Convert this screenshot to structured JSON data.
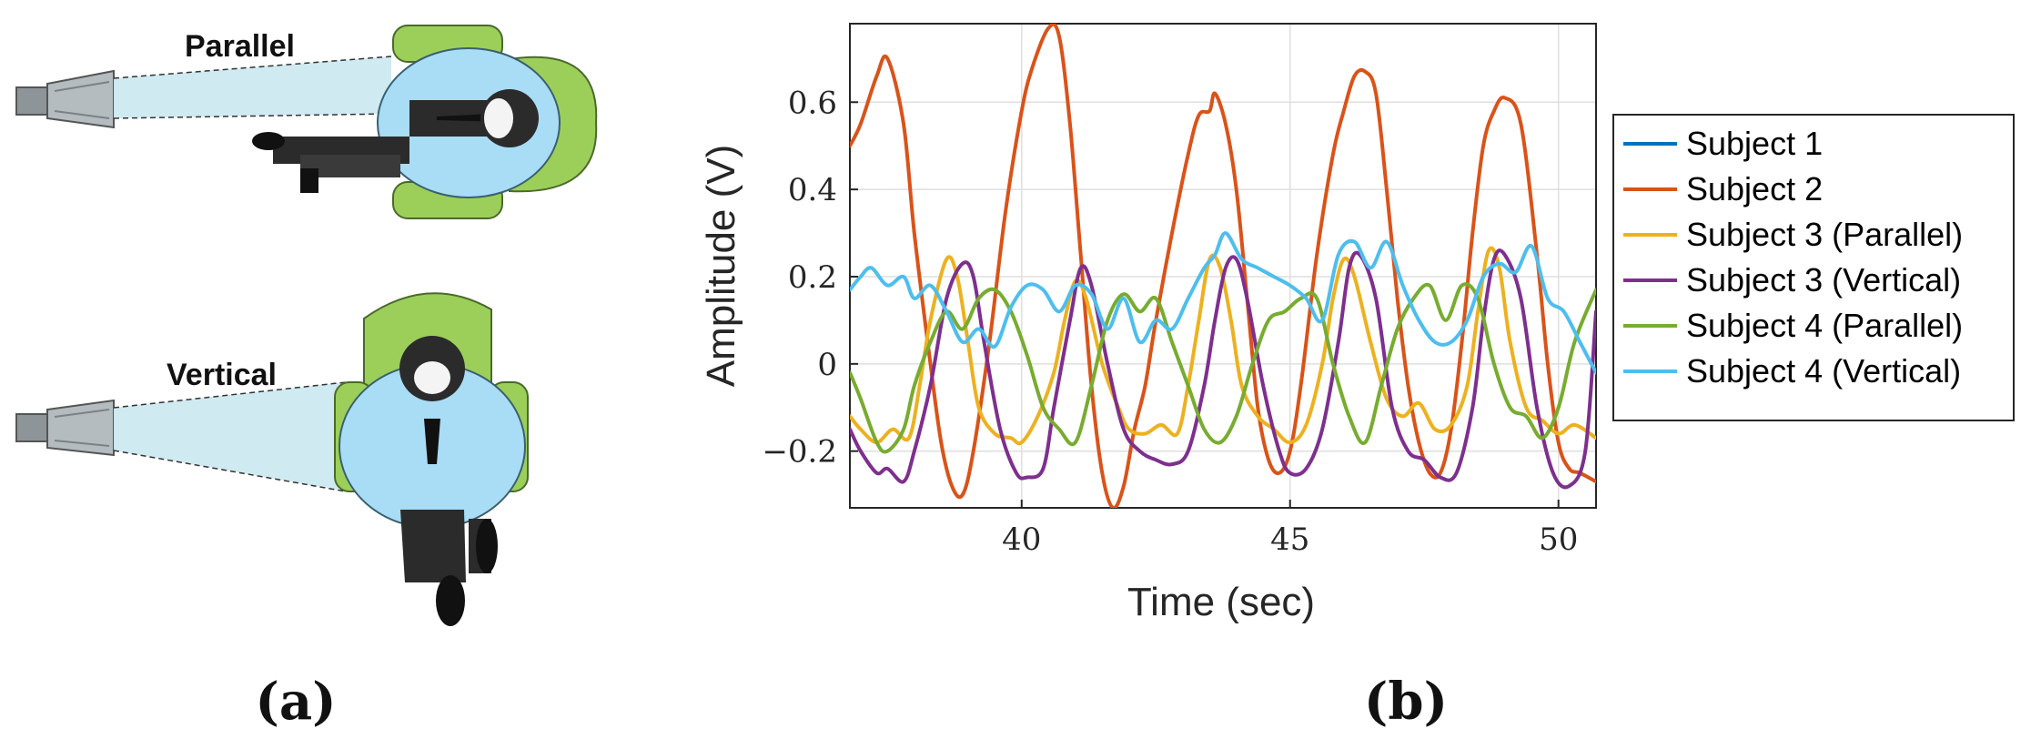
{
  "figure": {
    "panel_a_label": "(a)",
    "panel_b_label": "(b)"
  },
  "illustration": {
    "parallel_label": "Parallel",
    "vertical_label": "Vertical",
    "colors": {
      "chair": "#9ccf5a",
      "shirt": "#a9dcf5",
      "suit": "#2b2b2b",
      "beam": "#cce9f0",
      "antenna": "#9aa3a6"
    }
  },
  "chart_data": {
    "type": "line",
    "xlabel": "Time (sec)",
    "ylabel": "Amplitude (V)",
    "xlim": [
      36.8,
      50.7
    ],
    "ylim": [
      -0.33,
      0.78
    ],
    "xticks": [
      40,
      45,
      50
    ],
    "yticks": [
      -0.2,
      0,
      0.2,
      0.4,
      0.6
    ],
    "ytick_labels": [
      "−0.2",
      "0",
      "0.2",
      "0.4",
      "0.6"
    ],
    "grid": true,
    "legend_position": "right",
    "series": [
      {
        "name": "Subject 1",
        "color": "#0072bd",
        "x": [],
        "y": []
      },
      {
        "name": "Subject 2",
        "color": "#d95319",
        "x": [
          36.8,
          37.0,
          37.3,
          37.5,
          37.8,
          38.0,
          38.3,
          38.5,
          38.7,
          38.9,
          39.1,
          39.4,
          39.7,
          40.0,
          40.2,
          40.5,
          40.7,
          40.9,
          41.1,
          41.3,
          41.5,
          41.7,
          41.9,
          42.1,
          42.3,
          42.5,
          42.8,
          43.1,
          43.3,
          43.5,
          43.6,
          43.8,
          44.0,
          44.2,
          44.4,
          44.6,
          44.8,
          45.0,
          45.2,
          45.5,
          45.8,
          46.0,
          46.2,
          46.4,
          46.6,
          46.8,
          47.0,
          47.2,
          47.4,
          47.6,
          47.8,
          48.0,
          48.2,
          48.4,
          48.6,
          48.8,
          49.0,
          49.3,
          49.6,
          49.8,
          50.0,
          50.2,
          50.4,
          50.7
        ],
        "y": [
          0.5,
          0.55,
          0.66,
          0.7,
          0.55,
          0.3,
          0.0,
          -0.18,
          -0.28,
          -0.3,
          -0.2,
          0.05,
          0.35,
          0.58,
          0.68,
          0.77,
          0.75,
          0.55,
          0.25,
          -0.05,
          -0.25,
          -0.33,
          -0.28,
          -0.15,
          -0.05,
          0.1,
          0.3,
          0.48,
          0.57,
          0.58,
          0.62,
          0.55,
          0.4,
          0.15,
          -0.1,
          -0.22,
          -0.25,
          -0.2,
          -0.05,
          0.25,
          0.48,
          0.58,
          0.66,
          0.67,
          0.62,
          0.4,
          0.15,
          -0.05,
          -0.18,
          -0.25,
          -0.25,
          -0.15,
          0.05,
          0.3,
          0.5,
          0.58,
          0.61,
          0.55,
          0.25,
          0.0,
          -0.18,
          -0.24,
          -0.25,
          -0.27
        ]
      },
      {
        "name": "Subject 3 (Parallel)",
        "color": "#edb120",
        "x": [
          36.8,
          37.0,
          37.3,
          37.6,
          37.9,
          38.1,
          38.3,
          38.6,
          38.8,
          39.0,
          39.2,
          39.5,
          39.8,
          40.0,
          40.3,
          40.6,
          40.8,
          41.0,
          41.2,
          41.5,
          41.8,
          42.0,
          42.3,
          42.6,
          42.9,
          43.1,
          43.3,
          43.5,
          43.7,
          43.9,
          44.1,
          44.4,
          44.7,
          45.0,
          45.3,
          45.6,
          45.8,
          46.0,
          46.2,
          46.5,
          46.8,
          47.1,
          47.4,
          47.7,
          48.0,
          48.3,
          48.5,
          48.7,
          48.9,
          49.1,
          49.4,
          49.7,
          50.0,
          50.3,
          50.7
        ],
        "y": [
          -0.12,
          -0.15,
          -0.18,
          -0.15,
          -0.17,
          -0.05,
          0.1,
          0.24,
          0.2,
          0.05,
          -0.1,
          -0.16,
          -0.17,
          -0.18,
          -0.12,
          -0.02,
          0.1,
          0.19,
          0.15,
          0.0,
          -0.1,
          -0.15,
          -0.16,
          -0.14,
          -0.16,
          -0.05,
          0.1,
          0.24,
          0.22,
          0.1,
          -0.05,
          -0.12,
          -0.15,
          -0.18,
          -0.14,
          0.0,
          0.15,
          0.24,
          0.2,
          0.05,
          -0.08,
          -0.12,
          -0.09,
          -0.15,
          -0.14,
          -0.05,
          0.12,
          0.26,
          0.22,
          0.05,
          -0.1,
          -0.13,
          -0.16,
          -0.14,
          -0.17
        ]
      },
      {
        "name": "Subject 3 (Vertical)",
        "color": "#7e2f8e",
        "x": [
          36.8,
          37.0,
          37.3,
          37.5,
          37.8,
          38.0,
          38.3,
          38.6,
          38.9,
          39.1,
          39.3,
          39.6,
          39.9,
          40.1,
          40.4,
          40.6,
          40.9,
          41.1,
          41.3,
          41.6,
          41.9,
          42.2,
          42.5,
          42.8,
          43.1,
          43.4,
          43.6,
          43.8,
          44.0,
          44.2,
          44.5,
          44.8,
          45.0,
          45.3,
          45.6,
          45.9,
          46.1,
          46.3,
          46.6,
          46.9,
          47.2,
          47.5,
          47.8,
          48.1,
          48.4,
          48.6,
          48.8,
          49.0,
          49.3,
          49.6,
          49.9,
          50.2,
          50.5,
          50.7
        ],
        "y": [
          -0.15,
          -0.2,
          -0.25,
          -0.24,
          -0.27,
          -0.2,
          -0.05,
          0.15,
          0.23,
          0.2,
          0.05,
          -0.15,
          -0.25,
          -0.26,
          -0.24,
          -0.1,
          0.1,
          0.22,
          0.18,
          0.0,
          -0.15,
          -0.2,
          -0.22,
          -0.23,
          -0.2,
          -0.05,
          0.1,
          0.22,
          0.24,
          0.15,
          -0.05,
          -0.2,
          -0.25,
          -0.24,
          -0.15,
          0.05,
          0.22,
          0.25,
          0.15,
          -0.1,
          -0.2,
          -0.22,
          -0.26,
          -0.25,
          -0.1,
          0.1,
          0.24,
          0.25,
          0.15,
          -0.1,
          -0.25,
          -0.28,
          -0.2,
          0.12
        ]
      },
      {
        "name": "Subject 4 (Parallel)",
        "color": "#77ac30",
        "x": [
          36.8,
          37.0,
          37.3,
          37.5,
          37.8,
          38.0,
          38.3,
          38.6,
          38.9,
          39.2,
          39.5,
          39.8,
          40.1,
          40.4,
          40.7,
          41.0,
          41.3,
          41.6,
          41.9,
          42.2,
          42.5,
          42.8,
          43.1,
          43.4,
          43.7,
          44.0,
          44.3,
          44.6,
          44.9,
          45.2,
          45.5,
          45.8,
          46.1,
          46.4,
          46.7,
          47.0,
          47.3,
          47.6,
          47.9,
          48.2,
          48.5,
          48.8,
          49.1,
          49.4,
          49.7,
          50.0,
          50.3,
          50.7
        ],
        "y": [
          -0.02,
          -0.08,
          -0.18,
          -0.2,
          -0.15,
          -0.05,
          0.05,
          0.12,
          0.08,
          0.15,
          0.17,
          0.12,
          0.02,
          -0.1,
          -0.15,
          -0.18,
          -0.05,
          0.1,
          0.16,
          0.12,
          0.15,
          0.05,
          -0.05,
          -0.15,
          -0.18,
          -0.12,
          0.0,
          0.1,
          0.12,
          0.15,
          0.15,
          0.0,
          -0.12,
          -0.18,
          -0.05,
          0.08,
          0.15,
          0.18,
          0.1,
          0.18,
          0.15,
          0.0,
          -0.1,
          -0.12,
          -0.17,
          -0.1,
          0.05,
          0.17
        ]
      },
      {
        "name": "Subject 4 (Vertical)",
        "color": "#4dbeee",
        "x": [
          36.8,
          37.0,
          37.2,
          37.5,
          37.8,
          38.0,
          38.3,
          38.6,
          38.9,
          39.2,
          39.5,
          39.8,
          40.1,
          40.4,
          40.7,
          41.0,
          41.3,
          41.6,
          41.9,
          42.2,
          42.5,
          42.8,
          43.1,
          43.4,
          43.6,
          43.8,
          44.1,
          44.4,
          44.7,
          45.0,
          45.3,
          45.6,
          45.9,
          46.2,
          46.5,
          46.8,
          47.1,
          47.4,
          47.7,
          48.0,
          48.3,
          48.6,
          48.9,
          49.2,
          49.5,
          49.8,
          50.1,
          50.4,
          50.7
        ],
        "y": [
          0.17,
          0.2,
          0.22,
          0.18,
          0.2,
          0.15,
          0.18,
          0.12,
          0.05,
          0.08,
          0.04,
          0.13,
          0.18,
          0.17,
          0.12,
          0.18,
          0.16,
          0.08,
          0.15,
          0.05,
          0.1,
          0.08,
          0.15,
          0.22,
          0.25,
          0.3,
          0.24,
          0.22,
          0.2,
          0.18,
          0.15,
          0.1,
          0.25,
          0.28,
          0.22,
          0.28,
          0.18,
          0.1,
          0.05,
          0.05,
          0.1,
          0.2,
          0.23,
          0.21,
          0.27,
          0.15,
          0.12,
          0.05,
          -0.02
        ]
      }
    ]
  }
}
